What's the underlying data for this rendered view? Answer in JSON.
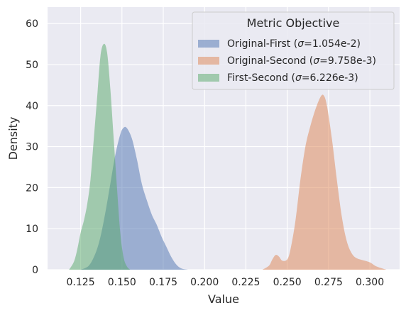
{
  "chart_data": {
    "type": "area",
    "subtype": "kde-density",
    "xlabel": "Value",
    "ylabel": "Density",
    "xlim": [
      0.105,
      0.318
    ],
    "ylim": [
      0,
      64
    ],
    "x_ticks": [
      0.125,
      0.15,
      0.175,
      0.2,
      0.225,
      0.25,
      0.275,
      0.3
    ],
    "x_tick_labels": [
      "0.125",
      "0.150",
      "0.175",
      "0.200",
      "0.225",
      "0.250",
      "0.275",
      "0.300"
    ],
    "y_ticks": [
      0,
      10,
      20,
      30,
      40,
      50,
      60
    ],
    "y_tick_labels": [
      "0",
      "10",
      "20",
      "30",
      "40",
      "50",
      "60"
    ],
    "grid": true,
    "background": "#eaeaf2",
    "legend": {
      "title": "Metric Objective",
      "placement": "top-right"
    },
    "series": [
      {
        "name": "Original-First (σ=1.054e-2)",
        "label_prefix": "Original-First (",
        "label_sigma": "σ",
        "label_suffix": "=1.054e-2)",
        "color": "#4c72b0",
        "points": [
          [
            0.125,
            0
          ],
          [
            0.13,
            1
          ],
          [
            0.134,
            4
          ],
          [
            0.137,
            8
          ],
          [
            0.14,
            14
          ],
          [
            0.143,
            21
          ],
          [
            0.146,
            28
          ],
          [
            0.149,
            33
          ],
          [
            0.151,
            34.6
          ],
          [
            0.153,
            34.5
          ],
          [
            0.156,
            32
          ],
          [
            0.159,
            27
          ],
          [
            0.162,
            21
          ],
          [
            0.165,
            17
          ],
          [
            0.168,
            13.5
          ],
          [
            0.171,
            11
          ],
          [
            0.174,
            8
          ],
          [
            0.177,
            5.5
          ],
          [
            0.18,
            3
          ],
          [
            0.183,
            1.2
          ],
          [
            0.186,
            0.3
          ],
          [
            0.19,
            0
          ]
        ]
      },
      {
        "name": "Original-Second (σ=9.758e-3)",
        "label_prefix": "Original-Second (",
        "label_sigma": "σ",
        "label_suffix": "=9.758e-3)",
        "color": "#dd8452",
        "points": [
          [
            0.235,
            0
          ],
          [
            0.239,
            1
          ],
          [
            0.241,
            2.5
          ],
          [
            0.243,
            3.6
          ],
          [
            0.245,
            3.2
          ],
          [
            0.247,
            2.2
          ],
          [
            0.25,
            2.5
          ],
          [
            0.252,
            5
          ],
          [
            0.255,
            12
          ],
          [
            0.258,
            22
          ],
          [
            0.261,
            30
          ],
          [
            0.264,
            35
          ],
          [
            0.267,
            39
          ],
          [
            0.27,
            42
          ],
          [
            0.272,
            42.5
          ],
          [
            0.274,
            40
          ],
          [
            0.277,
            32
          ],
          [
            0.28,
            22
          ],
          [
            0.283,
            13
          ],
          [
            0.286,
            7
          ],
          [
            0.289,
            4
          ],
          [
            0.292,
            2.8
          ],
          [
            0.296,
            2.3
          ],
          [
            0.3,
            1.8
          ],
          [
            0.304,
            0.8
          ],
          [
            0.31,
            0
          ]
        ]
      },
      {
        "name": "First-Second (σ=6.226e-3)",
        "label_prefix": "First-Second (",
        "label_sigma": "σ",
        "label_suffix": "=6.226e-3)",
        "color": "#55a868",
        "points": [
          [
            0.118,
            0
          ],
          [
            0.121,
            2
          ],
          [
            0.123,
            5
          ],
          [
            0.125,
            9
          ],
          [
            0.127,
            12
          ],
          [
            0.129,
            16
          ],
          [
            0.131,
            22
          ],
          [
            0.133,
            32
          ],
          [
            0.135,
            42
          ],
          [
            0.137,
            52
          ],
          [
            0.139,
            55
          ],
          [
            0.141,
            53
          ],
          [
            0.143,
            44
          ],
          [
            0.145,
            32
          ],
          [
            0.147,
            20
          ],
          [
            0.149,
            9
          ],
          [
            0.151,
            3
          ],
          [
            0.153,
            0.8
          ],
          [
            0.155,
            0
          ]
        ]
      }
    ]
  }
}
